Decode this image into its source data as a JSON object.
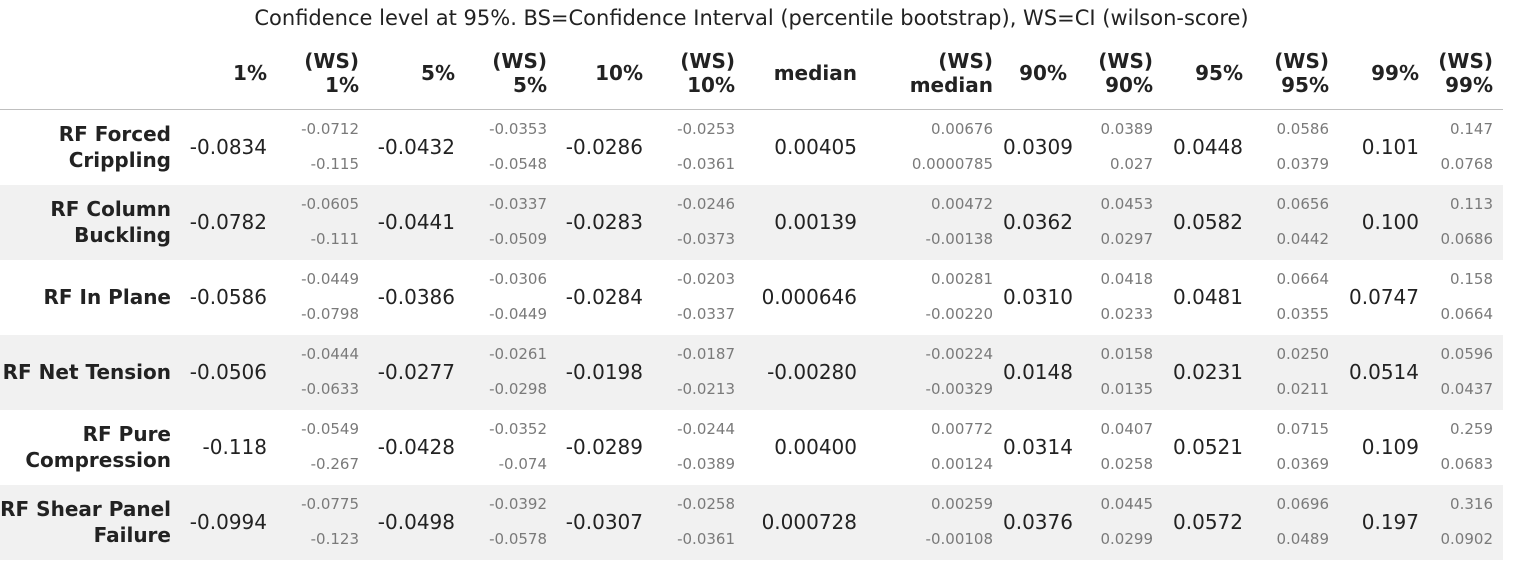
{
  "caption": "Confidence level at 95%. BS=Confidence Interval (percentile bootstrap), WS=CI (wilson-score)",
  "columns": [
    "1%",
    "(WS)\n1%",
    "5%",
    "(WS)\n5%",
    "10%",
    "(WS)\n10%",
    "median",
    "(WS)\nmedian",
    "90%",
    "(WS)\n90%",
    "95%",
    "(WS)\n95%",
    "99%",
    "(WS)\n99%"
  ],
  "rows": [
    {
      "label": "RF Forced\nCrippling",
      "cells": [
        {
          "v": "-0.0834"
        },
        {
          "hi": "-0.0712",
          "lo": "-0.115"
        },
        {
          "v": "-0.0432"
        },
        {
          "hi": "-0.0353",
          "lo": "-0.0548"
        },
        {
          "v": "-0.0286"
        },
        {
          "hi": "-0.0253",
          "lo": "-0.0361"
        },
        {
          "v": "0.00405"
        },
        {
          "hi": "0.00676",
          "lo": "0.0000785"
        },
        {
          "v": "0.0309"
        },
        {
          "hi": "0.0389",
          "lo": "0.027"
        },
        {
          "v": "0.0448"
        },
        {
          "hi": "0.0586",
          "lo": "0.0379"
        },
        {
          "v": "0.101"
        },
        {
          "hi": "0.147",
          "lo": "0.0768"
        }
      ]
    },
    {
      "label": "RF Column\nBuckling",
      "cells": [
        {
          "v": "-0.0782"
        },
        {
          "hi": "-0.0605",
          "lo": "-0.111"
        },
        {
          "v": "-0.0441"
        },
        {
          "hi": "-0.0337",
          "lo": "-0.0509"
        },
        {
          "v": "-0.0283"
        },
        {
          "hi": "-0.0246",
          "lo": "-0.0373"
        },
        {
          "v": "0.00139"
        },
        {
          "hi": "0.00472",
          "lo": "-0.00138"
        },
        {
          "v": "0.0362"
        },
        {
          "hi": "0.0453",
          "lo": "0.0297"
        },
        {
          "v": "0.0582"
        },
        {
          "hi": "0.0656",
          "lo": "0.0442"
        },
        {
          "v": "0.100"
        },
        {
          "hi": "0.113",
          "lo": "0.0686"
        }
      ]
    },
    {
      "label": "RF In Plane",
      "cells": [
        {
          "v": "-0.0586"
        },
        {
          "hi": "-0.0449",
          "lo": "-0.0798"
        },
        {
          "v": "-0.0386"
        },
        {
          "hi": "-0.0306",
          "lo": "-0.0449"
        },
        {
          "v": "-0.0284"
        },
        {
          "hi": "-0.0203",
          "lo": "-0.0337"
        },
        {
          "v": "0.000646"
        },
        {
          "hi": "0.00281",
          "lo": "-0.00220"
        },
        {
          "v": "0.0310"
        },
        {
          "hi": "0.0418",
          "lo": "0.0233"
        },
        {
          "v": "0.0481"
        },
        {
          "hi": "0.0664",
          "lo": "0.0355"
        },
        {
          "v": "0.0747"
        },
        {
          "hi": "0.158",
          "lo": "0.0664"
        }
      ]
    },
    {
      "label": "RF Net Tension",
      "cells": [
        {
          "v": "-0.0506"
        },
        {
          "hi": "-0.0444",
          "lo": "-0.0633"
        },
        {
          "v": "-0.0277"
        },
        {
          "hi": "-0.0261",
          "lo": "-0.0298"
        },
        {
          "v": "-0.0198"
        },
        {
          "hi": "-0.0187",
          "lo": "-0.0213"
        },
        {
          "v": "-0.00280"
        },
        {
          "hi": "-0.00224",
          "lo": "-0.00329"
        },
        {
          "v": "0.0148"
        },
        {
          "hi": "0.0158",
          "lo": "0.0135"
        },
        {
          "v": "0.0231"
        },
        {
          "hi": "0.0250",
          "lo": "0.0211"
        },
        {
          "v": "0.0514"
        },
        {
          "hi": "0.0596",
          "lo": "0.0437"
        }
      ]
    },
    {
      "label": "RF Pure\nCompression",
      "cells": [
        {
          "v": "-0.118"
        },
        {
          "hi": "-0.0549",
          "lo": "-0.267"
        },
        {
          "v": "-0.0428"
        },
        {
          "hi": "-0.0352",
          "lo": "-0.074"
        },
        {
          "v": "-0.0289"
        },
        {
          "hi": "-0.0244",
          "lo": "-0.0389"
        },
        {
          "v": "0.00400"
        },
        {
          "hi": "0.00772",
          "lo": "0.00124"
        },
        {
          "v": "0.0314"
        },
        {
          "hi": "0.0407",
          "lo": "0.0258"
        },
        {
          "v": "0.0521"
        },
        {
          "hi": "0.0715",
          "lo": "0.0369"
        },
        {
          "v": "0.109"
        },
        {
          "hi": "0.259",
          "lo": "0.0683"
        }
      ]
    },
    {
      "label": "RF Shear Panel\nFailure",
      "cells": [
        {
          "v": "-0.0994"
        },
        {
          "hi": "-0.0775",
          "lo": "-0.123"
        },
        {
          "v": "-0.0498"
        },
        {
          "hi": "-0.0392",
          "lo": "-0.0578"
        },
        {
          "v": "-0.0307"
        },
        {
          "hi": "-0.0258",
          "lo": "-0.0361"
        },
        {
          "v": "0.000728"
        },
        {
          "hi": "0.00259",
          "lo": "-0.00108"
        },
        {
          "v": "0.0376"
        },
        {
          "hi": "0.0445",
          "lo": "0.0299"
        },
        {
          "v": "0.0572"
        },
        {
          "hi": "0.0696",
          "lo": "0.0489"
        },
        {
          "v": "0.197"
        },
        {
          "hi": "0.316",
          "lo": "0.0902"
        }
      ]
    }
  ]
}
